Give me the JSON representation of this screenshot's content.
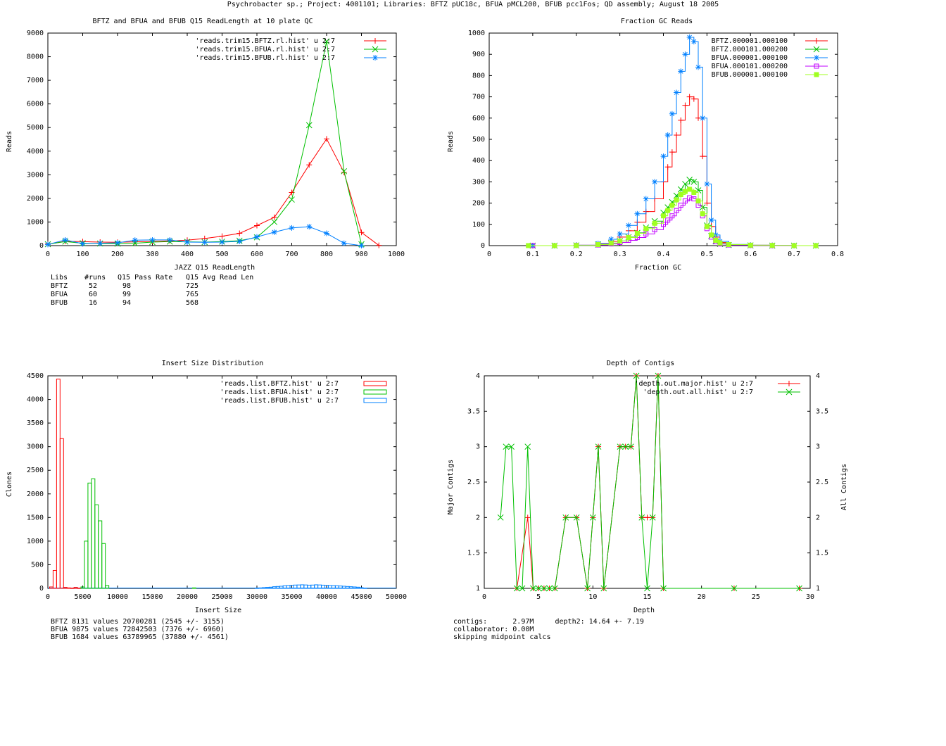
{
  "page_title": "Psychrobacter sp.; Project: 4001101; Libraries: BFTZ pUC18c, BFUA pMCL200, BFUB pcc1Fos; QD assembly; August 18 2005",
  "colors": {
    "red": "#ff0000",
    "green": "#00c000",
    "blue": "#0080ff",
    "purple": "#c000ff",
    "lime": "#a0ff20"
  },
  "chart_data": [
    {
      "id": "readlength",
      "type": "line",
      "title": "BFTZ and BFUA and BFUB Q15 ReadLength at 10 plate QC",
      "xlabel": "JAZZ Q15 ReadLength",
      "ylabel": "Reads",
      "xlim": [
        0,
        1000
      ],
      "ylim": [
        0,
        9000
      ],
      "xticks": [
        0,
        100,
        200,
        300,
        400,
        500,
        600,
        700,
        800,
        900,
        1000
      ],
      "yticks": [
        0,
        1000,
        2000,
        3000,
        4000,
        5000,
        6000,
        7000,
        8000,
        9000
      ],
      "legend_position": "top-right",
      "series": [
        {
          "name": "'reads.trim15.BFTZ.rl.hist' u 2:7",
          "color": "#ff0000",
          "marker": "plus",
          "x": [
            0,
            50,
            100,
            150,
            200,
            250,
            300,
            350,
            400,
            450,
            500,
            550,
            600,
            650,
            700,
            750,
            800,
            850,
            900,
            950
          ],
          "y": [
            70,
            180,
            170,
            150,
            140,
            160,
            180,
            200,
            230,
            300,
            400,
            520,
            850,
            1200,
            2250,
            3420,
            4520,
            3100,
            560,
            10
          ]
        },
        {
          "name": "'reads.trim15.BFUA.rl.hist' u 2:7",
          "color": "#00c000",
          "marker": "x",
          "x": [
            0,
            50,
            100,
            150,
            200,
            250,
            300,
            350,
            400,
            450,
            500,
            550,
            600,
            650,
            700,
            750,
            800,
            850,
            900
          ],
          "y": [
            60,
            170,
            100,
            90,
            80,
            100,
            150,
            170,
            160,
            150,
            170,
            210,
            350,
            1000,
            1950,
            5100,
            8650,
            3150,
            60
          ]
        },
        {
          "name": "'reads.trim15.BFUB.rl.hist' u 2:7",
          "color": "#0080ff",
          "marker": "star",
          "x": [
            0,
            50,
            100,
            150,
            200,
            250,
            300,
            350,
            400,
            450,
            500,
            550,
            600,
            650,
            700,
            750,
            800,
            850,
            900
          ],
          "y": [
            50,
            240,
            80,
            100,
            120,
            230,
            240,
            240,
            150,
            140,
            150,
            180,
            370,
            570,
            750,
            800,
            520,
            100,
            0
          ]
        }
      ],
      "stats_table": {
        "header": [
          "Libs",
          "#runs",
          "Q15 Pass Rate",
          "Q15 Avg Read Len"
        ],
        "rows": [
          [
            "BFTZ",
            "52",
            "98",
            "725"
          ],
          [
            "BFUA",
            "60",
            "99",
            "765"
          ],
          [
            "BFUB",
            "16",
            "94",
            "568"
          ]
        ]
      }
    },
    {
      "id": "gc",
      "type": "line",
      "title": "Fraction GC Reads",
      "xlabel": "Fraction GC",
      "ylabel": "Reads",
      "xlim": [
        0,
        0.8
      ],
      "ylim": [
        0,
        1000
      ],
      "xticks": [
        0,
        0.1,
        0.2,
        0.3,
        0.4,
        0.5,
        0.6,
        0.7,
        0.8
      ],
      "yticks": [
        0,
        100,
        200,
        300,
        400,
        500,
        600,
        700,
        800,
        900,
        1000
      ],
      "legend_position": "top-right",
      "series": [
        {
          "name": "BFTZ.000001.000100",
          "color": "#ff0000",
          "marker": "plus",
          "x": [
            0.1,
            0.15,
            0.2,
            0.25,
            0.28,
            0.3,
            0.32,
            0.34,
            0.36,
            0.38,
            0.4,
            0.41,
            0.42,
            0.43,
            0.44,
            0.45,
            0.46,
            0.47,
            0.48,
            0.49,
            0.5,
            0.51,
            0.52,
            0.53,
            0.55,
            0.6,
            0.65,
            0.7,
            0.75
          ],
          "y": [
            0,
            0,
            2,
            8,
            20,
            40,
            70,
            110,
            160,
            220,
            300,
            370,
            440,
            520,
            590,
            660,
            700,
            690,
            600,
            420,
            200,
            90,
            40,
            15,
            5,
            2,
            1,
            0,
            0
          ]
        },
        {
          "name": "BFTZ.000101.000200",
          "color": "#00c000",
          "marker": "x",
          "x": [
            0.1,
            0.15,
            0.2,
            0.25,
            0.28,
            0.3,
            0.32,
            0.34,
            0.36,
            0.38,
            0.4,
            0.41,
            0.42,
            0.43,
            0.44,
            0.45,
            0.46,
            0.47,
            0.48,
            0.49,
            0.5,
            0.51,
            0.52,
            0.53,
            0.55,
            0.6,
            0.65,
            0.7,
            0.75
          ],
          "y": [
            0,
            0,
            1,
            5,
            12,
            22,
            40,
            60,
            85,
            115,
            155,
            180,
            205,
            235,
            265,
            290,
            310,
            300,
            260,
            180,
            95,
            45,
            20,
            8,
            3,
            1,
            0,
            0,
            0
          ]
        },
        {
          "name": "BFUA.000001.000100",
          "color": "#0080ff",
          "marker": "star",
          "x": [
            0.1,
            0.15,
            0.2,
            0.25,
            0.28,
            0.3,
            0.32,
            0.34,
            0.36,
            0.38,
            0.4,
            0.41,
            0.42,
            0.43,
            0.44,
            0.45,
            0.46,
            0.47,
            0.48,
            0.49,
            0.5,
            0.51,
            0.52,
            0.53,
            0.55,
            0.6,
            0.65,
            0.7,
            0.75
          ],
          "y": [
            0,
            0,
            2,
            10,
            30,
            55,
            95,
            150,
            220,
            300,
            420,
            520,
            620,
            720,
            820,
            900,
            980,
            960,
            840,
            600,
            290,
            120,
            50,
            20,
            6,
            2,
            1,
            0,
            0
          ]
        },
        {
          "name": "BFUA.000101.000200",
          "color": "#c000ff",
          "marker": "square",
          "x": [
            0.1,
            0.15,
            0.2,
            0.25,
            0.28,
            0.3,
            0.32,
            0.34,
            0.36,
            0.38,
            0.4,
            0.41,
            0.42,
            0.43,
            0.44,
            0.45,
            0.46,
            0.47,
            0.48,
            0.49,
            0.5,
            0.51,
            0.52,
            0.53,
            0.55,
            0.6,
            0.65,
            0.7,
            0.75
          ],
          "y": [
            0,
            0,
            1,
            3,
            8,
            15,
            25,
            38,
            55,
            75,
            100,
            120,
            140,
            165,
            190,
            210,
            225,
            220,
            190,
            140,
            80,
            40,
            18,
            8,
            3,
            1,
            0,
            0,
            0
          ]
        },
        {
          "name": "BFUB.000001.000100",
          "color": "#a0ff20",
          "marker": "filled-square",
          "x": [
            0.09,
            0.15,
            0.2,
            0.25,
            0.28,
            0.3,
            0.32,
            0.34,
            0.36,
            0.38,
            0.4,
            0.41,
            0.42,
            0.43,
            0.44,
            0.45,
            0.46,
            0.47,
            0.48,
            0.49,
            0.5,
            0.51,
            0.52,
            0.53,
            0.55,
            0.6,
            0.65,
            0.7,
            0.75
          ],
          "y": [
            0,
            0,
            1,
            5,
            12,
            22,
            38,
            58,
            80,
            105,
            140,
            165,
            190,
            215,
            240,
            255,
            265,
            250,
            210,
            150,
            90,
            50,
            25,
            12,
            5,
            2,
            1,
            0,
            0
          ]
        }
      ]
    },
    {
      "id": "insert",
      "type": "bar",
      "title": "Insert Size Distribution",
      "xlabel": "Insert Size",
      "ylabel": "Clones",
      "xlim": [
        0,
        50000
      ],
      "ylim": [
        0,
        4500
      ],
      "xticks": [
        0,
        5000,
        10000,
        15000,
        20000,
        25000,
        30000,
        35000,
        40000,
        45000,
        50000
      ],
      "yticks": [
        0,
        500,
        1000,
        1500,
        2000,
        2500,
        3000,
        3500,
        4000,
        4500
      ],
      "legend_position": "top-right",
      "bin_width": 500,
      "series": [
        {
          "name": "'reads.list.BFTZ.hist' u 2:7",
          "color": "#ff0000",
          "x": [
            500,
            1000,
            1500,
            2000,
            2500,
            3000,
            3500,
            4000,
            4500
          ],
          "y": [
            30,
            380,
            4430,
            3170,
            20,
            10,
            5,
            20,
            5
          ]
        },
        {
          "name": "'reads.list.BFUA.hist' u 2:7",
          "color": "#00c000",
          "x": [
            5000,
            5500,
            6000,
            6500,
            7000,
            7500,
            8000,
            8500,
            21000
          ],
          "y": [
            30,
            1000,
            2230,
            2320,
            1770,
            1430,
            950,
            60,
            10
          ]
        },
        {
          "name": "'reads.list.BFUB.hist' u 2:7",
          "color": "#0080ff",
          "x": [
            30000,
            30500,
            31000,
            31500,
            32000,
            32500,
            33000,
            33500,
            34000,
            34500,
            35000,
            35500,
            36000,
            36500,
            37000,
            37500,
            38000,
            38500,
            39000,
            39500,
            40000,
            40500,
            41000,
            41500,
            42000,
            42500,
            43000,
            43500,
            44000,
            44500,
            45000,
            45500
          ],
          "y": [
            5,
            10,
            15,
            20,
            25,
            35,
            40,
            45,
            55,
            60,
            65,
            70,
            72,
            75,
            72,
            68,
            70,
            75,
            72,
            68,
            65,
            60,
            58,
            55,
            50,
            45,
            40,
            35,
            30,
            25,
            15,
            5
          ]
        }
      ],
      "stats_lines": [
        "BFTZ 8131 values 20700281 (2545 +/- 3155)",
        "BFUA 9875 values 72842503 (7376 +/- 6960)",
        "BFUB 1684 values 63789965 (37880 +/- 4561)"
      ]
    },
    {
      "id": "depth",
      "type": "line",
      "title": "Depth of Contigs",
      "xlabel": "Depth",
      "ylabel": "Major Contigs",
      "y2label": "All Contigs",
      "xlim": [
        0,
        30
      ],
      "ylim": [
        1,
        4
      ],
      "xticks": [
        0,
        5,
        10,
        15,
        20,
        25,
        30
      ],
      "yticks": [
        1,
        1.5,
        2,
        2.5,
        3,
        3.5,
        4
      ],
      "y2ticks": [
        1,
        1.5,
        2,
        2.5,
        3,
        3.5,
        4
      ],
      "legend_position": "top-right",
      "series": [
        {
          "name": "'depth.out.major.hist' u 2:7",
          "color": "#ff0000",
          "marker": "plus",
          "x": [
            3,
            4,
            4.5,
            5,
            5.5,
            6,
            6.5,
            7.5,
            8.5,
            9.5,
            10,
            10.5,
            11,
            12.5,
            13,
            13.5,
            14,
            14.5,
            15,
            15.5,
            16,
            16.5,
            23,
            29
          ],
          "y": [
            1,
            2,
            1,
            1,
            1,
            1,
            1,
            2,
            2,
            1,
            2,
            3,
            1,
            3,
            3,
            3,
            4,
            2,
            2,
            2,
            4,
            1,
            1,
            1
          ]
        },
        {
          "name": "'depth.out.all.hist' u 2:7",
          "color": "#00c000",
          "marker": "x",
          "x": [
            1.5,
            2,
            2.5,
            3,
            3.5,
            4,
            4.5,
            5,
            5.5,
            6,
            6.5,
            7.5,
            8.5,
            9.5,
            10,
            10.5,
            11,
            12.5,
            13,
            13.5,
            14,
            14.5,
            15,
            15.5,
            16,
            16.5,
            23,
            29
          ],
          "y": [
            2,
            3,
            3,
            1,
            1,
            3,
            1,
            1,
            1,
            1,
            1,
            2,
            2,
            1,
            2,
            3,
            1,
            3,
            3,
            3,
            4,
            2,
            1,
            2,
            4,
            1,
            1,
            1
          ]
        }
      ],
      "stats_lines": [
        "contigs:      2.97M     depth2: 14.64 +- 7.19",
        "collaborator: 0.00M",
        "skipping midpoint calcs"
      ]
    }
  ]
}
